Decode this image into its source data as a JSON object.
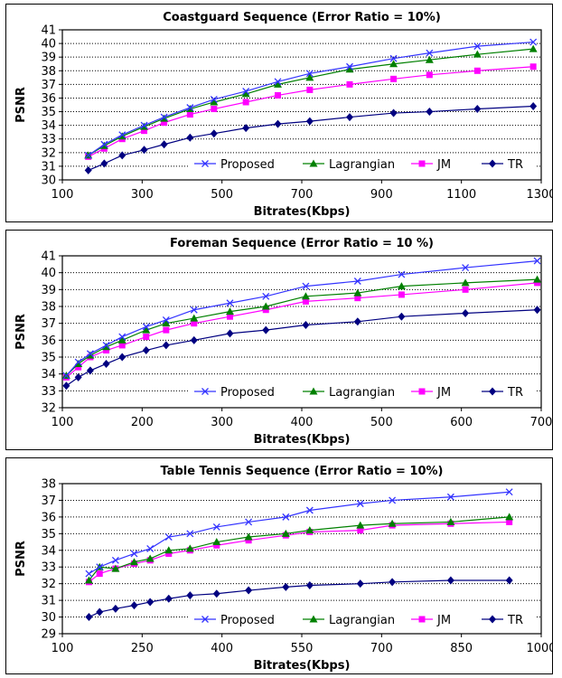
{
  "chart_data": [
    {
      "type": "line",
      "title": "Coastguard Sequence (Error Ratio = 10%)",
      "xlabel": "Bitrates(Kbps)",
      "ylabel": "PSNR",
      "xlim": [
        100,
        1300
      ],
      "ylim": [
        30,
        41
      ],
      "xticks": [
        100,
        300,
        500,
        700,
        900,
        1100,
        1300
      ],
      "yticks": [
        30,
        31,
        32,
        33,
        34,
        35,
        36,
        37,
        38,
        39,
        40,
        41
      ],
      "grid": "horizontal-dotted",
      "legend": "bottom-right",
      "series": [
        {
          "name": "Proposed",
          "color": "#3333ff",
          "marker": "x",
          "x": [
            165,
            205,
            250,
            305,
            355,
            420,
            480,
            560,
            640,
            720,
            820,
            930,
            1020,
            1140,
            1280
          ],
          "y": [
            31.8,
            32.6,
            33.3,
            34.0,
            34.6,
            35.3,
            35.9,
            36.5,
            37.2,
            37.8,
            38.3,
            38.9,
            39.3,
            39.8,
            40.1
          ]
        },
        {
          "name": "Lagrangian",
          "color": "#008000",
          "marker": "triangle",
          "x": [
            165,
            205,
            250,
            305,
            355,
            420,
            480,
            560,
            640,
            720,
            820,
            930,
            1020,
            1140,
            1280
          ],
          "y": [
            31.8,
            32.5,
            33.2,
            33.9,
            34.5,
            35.2,
            35.7,
            36.3,
            37.0,
            37.5,
            38.1,
            38.5,
            38.8,
            39.2,
            39.6
          ]
        },
        {
          "name": "JM",
          "color": "#ff00ff",
          "marker": "square",
          "x": [
            165,
            205,
            250,
            305,
            355,
            420,
            480,
            560,
            640,
            720,
            820,
            930,
            1020,
            1140,
            1280
          ],
          "y": [
            31.7,
            32.3,
            33.0,
            33.6,
            34.2,
            34.8,
            35.2,
            35.7,
            36.2,
            36.6,
            37.0,
            37.4,
            37.7,
            38.0,
            38.3
          ]
        },
        {
          "name": "TR",
          "color": "#000080",
          "marker": "diamond",
          "x": [
            165,
            205,
            250,
            305,
            355,
            420,
            480,
            560,
            640,
            720,
            820,
            930,
            1020,
            1140,
            1280
          ],
          "y": [
            30.7,
            31.2,
            31.8,
            32.2,
            32.6,
            33.1,
            33.4,
            33.8,
            34.1,
            34.3,
            34.6,
            34.9,
            35.0,
            35.2,
            35.4
          ]
        }
      ]
    },
    {
      "type": "line",
      "title": "Foreman Sequence (Error Ratio = 10 %)",
      "xlabel": "Bitrates(Kbps)",
      "ylabel": "PSNR",
      "xlim": [
        100,
        700
      ],
      "ylim": [
        32,
        41
      ],
      "xticks": [
        100,
        200,
        300,
        400,
        500,
        600,
        700
      ],
      "yticks": [
        32,
        33,
        34,
        35,
        36,
        37,
        38,
        39,
        40,
        41
      ],
      "grid": "horizontal-dotted",
      "legend": "bottom",
      "series": [
        {
          "name": "Proposed",
          "color": "#3333ff",
          "marker": "x",
          "x": [
            105,
            120,
            135,
            155,
            175,
            205,
            230,
            265,
            310,
            355,
            405,
            470,
            525,
            605,
            695
          ],
          "y": [
            33.9,
            34.7,
            35.2,
            35.7,
            36.2,
            36.8,
            37.2,
            37.8,
            38.2,
            38.6,
            39.2,
            39.5,
            39.9,
            40.3,
            40.7
          ]
        },
        {
          "name": "Lagrangian",
          "color": "#008000",
          "marker": "triangle",
          "x": [
            105,
            120,
            135,
            155,
            175,
            205,
            230,
            265,
            310,
            355,
            405,
            470,
            525,
            605,
            695
          ],
          "y": [
            33.9,
            34.6,
            35.1,
            35.6,
            36.0,
            36.6,
            37.0,
            37.3,
            37.7,
            38.0,
            38.6,
            38.8,
            39.2,
            39.4,
            39.6
          ]
        },
        {
          "name": "JM",
          "color": "#ff00ff",
          "marker": "square",
          "x": [
            105,
            120,
            135,
            155,
            175,
            205,
            230,
            265,
            310,
            355,
            405,
            470,
            525,
            605,
            695
          ],
          "y": [
            33.8,
            34.4,
            35.0,
            35.4,
            35.7,
            36.2,
            36.6,
            37.0,
            37.4,
            37.8,
            38.3,
            38.5,
            38.7,
            39.0,
            39.4
          ]
        },
        {
          "name": "TR",
          "color": "#000080",
          "marker": "diamond",
          "x": [
            105,
            120,
            135,
            155,
            175,
            205,
            230,
            265,
            310,
            355,
            405,
            470,
            525,
            605,
            695
          ],
          "y": [
            33.3,
            33.8,
            34.2,
            34.6,
            35.0,
            35.4,
            35.7,
            36.0,
            36.4,
            36.6,
            36.9,
            37.1,
            37.4,
            37.6,
            37.8
          ]
        }
      ]
    },
    {
      "type": "line",
      "title": "Table Tennis Sequence (Error Ratio = 10%)",
      "xlabel": "Bitrates(Kbps)",
      "ylabel": "PSNR",
      "xlim": [
        100,
        1000
      ],
      "ylim": [
        29,
        38
      ],
      "xticks": [
        100,
        250,
        400,
        550,
        700,
        850,
        1000
      ],
      "yticks": [
        29,
        30,
        31,
        32,
        33,
        34,
        35,
        36,
        37,
        38
      ],
      "grid": "horizontal-dotted",
      "legend": "bottom-right",
      "series": [
        {
          "name": "Proposed",
          "color": "#3333ff",
          "marker": "x",
          "x": [
            150,
            170,
            200,
            235,
            265,
            300,
            340,
            390,
            450,
            520,
            565,
            660,
            720,
            830,
            940
          ],
          "y": [
            32.6,
            33.0,
            33.4,
            33.8,
            34.1,
            34.8,
            35.0,
            35.4,
            35.7,
            36.0,
            36.4,
            36.8,
            37.0,
            37.2,
            37.5
          ]
        },
        {
          "name": "Lagrangian",
          "color": "#008000",
          "marker": "triangle",
          "x": [
            150,
            170,
            200,
            235,
            265,
            300,
            340,
            390,
            450,
            520,
            565,
            660,
            720,
            830,
            940
          ],
          "y": [
            32.2,
            33.0,
            32.9,
            33.3,
            33.5,
            34.0,
            34.1,
            34.5,
            34.8,
            35.0,
            35.2,
            35.5,
            35.6,
            35.7,
            36.0
          ]
        },
        {
          "name": "JM",
          "color": "#ff00ff",
          "marker": "square",
          "x": [
            150,
            170,
            200,
            235,
            265,
            300,
            340,
            390,
            450,
            520,
            565,
            660,
            720,
            830,
            940
          ],
          "y": [
            32.1,
            32.6,
            32.9,
            33.2,
            33.4,
            33.8,
            34.0,
            34.3,
            34.6,
            34.9,
            35.1,
            35.2,
            35.5,
            35.6,
            35.7
          ]
        },
        {
          "name": "TR",
          "color": "#000080",
          "marker": "diamond",
          "x": [
            150,
            170,
            200,
            235,
            265,
            300,
            340,
            390,
            450,
            520,
            565,
            660,
            720,
            830,
            940
          ],
          "y": [
            30.0,
            30.3,
            30.5,
            30.7,
            30.9,
            31.1,
            31.3,
            31.4,
            31.6,
            31.8,
            31.9,
            32.0,
            32.1,
            32.2,
            32.2
          ]
        }
      ]
    }
  ]
}
